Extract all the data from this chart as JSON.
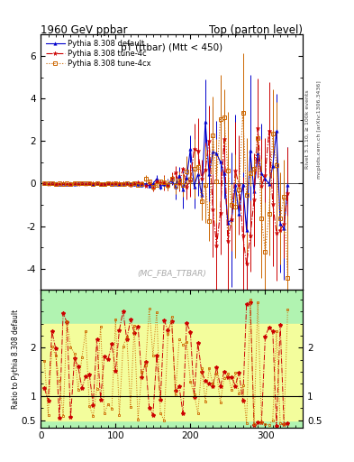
{
  "title_left": "1960 GeV ppbar",
  "title_right": "Top (parton level)",
  "plot_title": "pT (ttbar) (Mtt < 450)",
  "watermark": "(MC_FBA_TTBAR)",
  "right_label_top": "Rivet 3.1.10, ≥ 100k events",
  "right_label_bottom": "mcplots.cern.ch [arXiv:1306.3436]",
  "ylabel_ratio": "Ratio to Pythia 8.308 default",
  "ylim_main": [
    -5.0,
    7.0
  ],
  "ylim_ratio": [
    0.35,
    3.2
  ],
  "xlim": [
    0,
    350
  ],
  "main_yticks": [
    -4,
    -2,
    0,
    2,
    4,
    6
  ],
  "ratio_yticks": [
    0.5,
    1.0,
    2.0
  ],
  "ratio_yticklabels": [
    "0.5",
    "1",
    "2"
  ],
  "xticks": [
    0,
    100,
    200,
    300
  ],
  "blue": "#0000cc",
  "red": "#cc0000",
  "orange": "#cc6600",
  "green_band_color": "#90ee90",
  "yellow_band_color": "#ffff99",
  "legend_labels": [
    "Pythia 8.308 default",
    "Pythia 8.308 tune-4c",
    "Pythia 8.308 tune-4cx"
  ]
}
